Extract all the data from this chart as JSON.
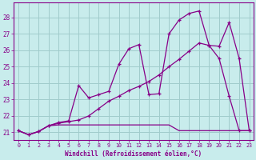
{
  "xlabel": "Windchill (Refroidissement éolien,°C)",
  "background_color": "#c8ecec",
  "grid_color": "#a0cccc",
  "line_color": "#880088",
  "xlim_min": -0.5,
  "xlim_max": 23.4,
  "ylim_min": 20.55,
  "ylim_max": 28.9,
  "yticks": [
    21,
    22,
    23,
    24,
    25,
    26,
    27,
    28
  ],
  "xticks": [
    0,
    1,
    2,
    3,
    4,
    5,
    6,
    7,
    8,
    9,
    10,
    11,
    12,
    13,
    14,
    15,
    16,
    17,
    18,
    19,
    20,
    21,
    22,
    23
  ],
  "series_flat_x": [
    0,
    1,
    2,
    3,
    4,
    5,
    6,
    7,
    8,
    9,
    10,
    11,
    12,
    13,
    14,
    15,
    16,
    17,
    18,
    19,
    20,
    21,
    22,
    23
  ],
  "series_flat_y": [
    21.1,
    20.85,
    21.05,
    21.4,
    21.45,
    21.45,
    21.45,
    21.45,
    21.45,
    21.45,
    21.45,
    21.45,
    21.45,
    21.45,
    21.45,
    21.45,
    21.1,
    21.1,
    21.1,
    21.1,
    21.1,
    21.1,
    21.1,
    21.1
  ],
  "series_peak_x": [
    0,
    1,
    2,
    3,
    4,
    5,
    6,
    7,
    8,
    9,
    10,
    11,
    12,
    13,
    14,
    15,
    16,
    17,
    18,
    19,
    20,
    21,
    22,
    23
  ],
  "series_peak_y": [
    21.1,
    20.85,
    21.05,
    21.4,
    21.6,
    21.7,
    23.85,
    23.1,
    23.3,
    23.5,
    25.15,
    26.1,
    26.35,
    23.3,
    23.35,
    27.0,
    27.85,
    28.25,
    28.4,
    26.3,
    25.5,
    23.2,
    21.1,
    21.1
  ],
  "series_rise_x": [
    0,
    1,
    2,
    3,
    4,
    5,
    6,
    7,
    8,
    9,
    10,
    11,
    12,
    13,
    14,
    15,
    16,
    17,
    18,
    19,
    20,
    21,
    22,
    23
  ],
  "series_rise_y": [
    21.1,
    20.85,
    21.05,
    21.4,
    21.55,
    21.65,
    21.75,
    22.0,
    22.45,
    22.9,
    23.2,
    23.55,
    23.8,
    24.1,
    24.5,
    25.0,
    25.45,
    25.95,
    26.45,
    26.3,
    26.25,
    27.7,
    25.5,
    21.1
  ]
}
